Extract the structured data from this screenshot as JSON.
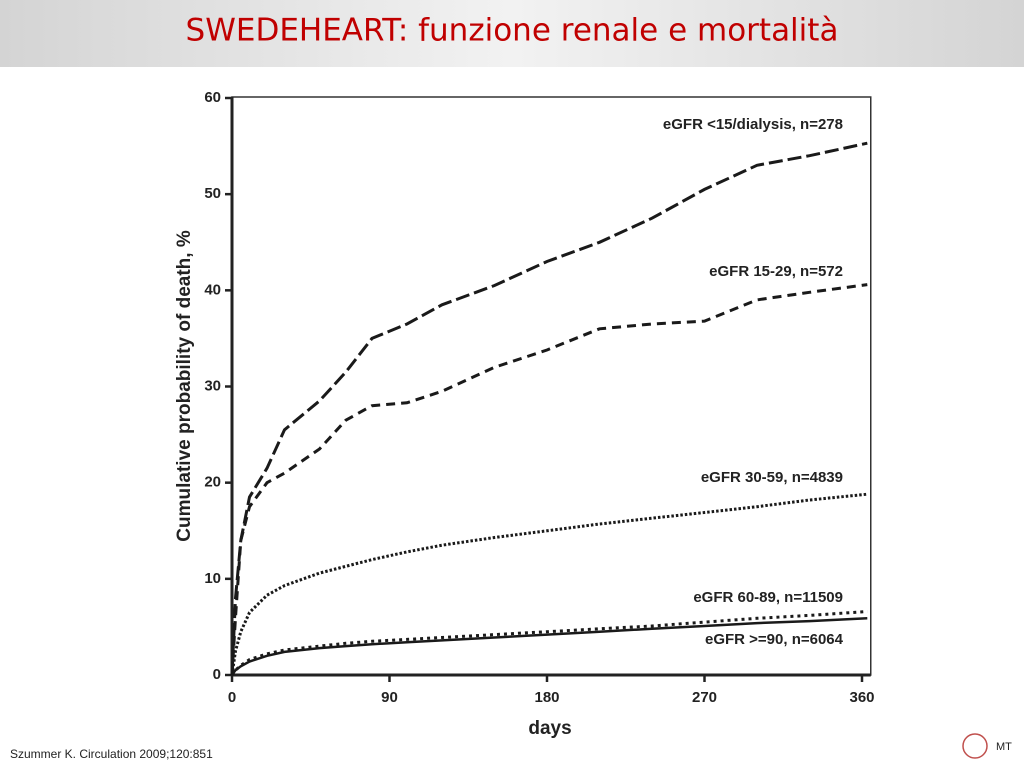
{
  "slide": {
    "title": "SWEDEHEART: funzione renale e mortalità",
    "footnote": "Szummer K. Circulation 2009;120:851",
    "logo": "MT"
  },
  "chart_data": {
    "type": "line",
    "xlabel": "days",
    "ylabel": "Cumulative probability of death, %",
    "xlim": [
      0,
      365
    ],
    "ylim": [
      0,
      60
    ],
    "xticks": [
      0,
      90,
      180,
      270,
      360
    ],
    "yticks": [
      0,
      10,
      20,
      30,
      40,
      50,
      60
    ],
    "x": [
      0,
      2,
      5,
      10,
      20,
      30,
      50,
      65,
      80,
      100,
      120,
      150,
      180,
      210,
      240,
      270,
      300,
      330,
      363
    ],
    "series": [
      {
        "name": "eGFR <15/dialysis, n=278",
        "color": "#1a1a1a",
        "dash": "long",
        "values": [
          0,
          8,
          14,
          18.5,
          21.5,
          25.5,
          28.5,
          31.5,
          35,
          36.5,
          38.5,
          40.5,
          43,
          45,
          47.5,
          50.5,
          53,
          54,
          55.3
        ]
      },
      {
        "name": "eGFR 15-29, n=572",
        "color": "#1a1a1a",
        "dash": "medium",
        "values": [
          0,
          6,
          14,
          17.5,
          20,
          21,
          23.5,
          26.5,
          28,
          28.3,
          29.5,
          32,
          33.8,
          36,
          36.5,
          36.8,
          39,
          39.8,
          40.6
        ]
      },
      {
        "name": "eGFR 30-59, n=4839",
        "color": "#1a1a1a",
        "dash": "dotted",
        "values": [
          0,
          2.5,
          4.5,
          6.5,
          8.3,
          9.3,
          10.6,
          11.3,
          12,
          12.8,
          13.5,
          14.3,
          15,
          15.7,
          16.3,
          16.9,
          17.5,
          18.2,
          18.8
        ]
      },
      {
        "name": "eGFR 60-89, n=11509",
        "color": "#1a1a1a",
        "dash": "fine",
        "values": [
          0,
          0.5,
          1,
          1.6,
          2.2,
          2.6,
          3.0,
          3.3,
          3.5,
          3.7,
          3.9,
          4.2,
          4.5,
          4.8,
          5.1,
          5.5,
          5.9,
          6.2,
          6.6
        ]
      },
      {
        "name": "eGFR >=90, n=6064",
        "color": "#1a1a1a",
        "dash": "solid",
        "values": [
          0,
          0.5,
          0.9,
          1.4,
          2.0,
          2.4,
          2.8,
          3.0,
          3.2,
          3.4,
          3.6,
          3.9,
          4.2,
          4.5,
          4.8,
          5.1,
          5.4,
          5.6,
          5.9
        ]
      }
    ]
  }
}
